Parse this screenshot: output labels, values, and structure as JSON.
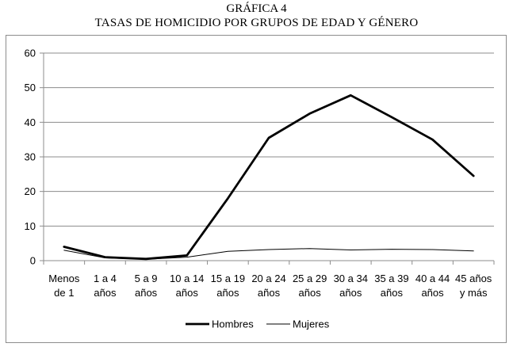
{
  "chart_data": {
    "type": "line",
    "title_line1": "GRÁFICA 4",
    "title_line2": "TASAS DE HOMICIDIO POR GRUPOS DE EDAD Y GÉNERO",
    "categories": [
      [
        "Menos",
        "de 1"
      ],
      [
        "1 a 4",
        "años"
      ],
      [
        "5 a 9",
        "años"
      ],
      [
        "10 a 14",
        "años"
      ],
      [
        "15 a 19",
        "años"
      ],
      [
        "20 a 24",
        "años"
      ],
      [
        "25 a 29",
        "años"
      ],
      [
        "30 a 34",
        "años"
      ],
      [
        "35 a 39",
        "años"
      ],
      [
        "40 a 44",
        "años"
      ],
      [
        "45 años",
        "y más"
      ]
    ],
    "yticks": [
      0,
      10,
      20,
      30,
      40,
      50,
      60
    ],
    "ylim": [
      0,
      60
    ],
    "grid": true,
    "legend_position": "bottom",
    "series": [
      {
        "name": "Hombres",
        "values": [
          4.0,
          1.0,
          0.5,
          1.5,
          18.0,
          35.5,
          42.5,
          47.8,
          41.5,
          35.0,
          24.5
        ],
        "color": "#000000",
        "weight": "bold"
      },
      {
        "name": "Mujeres",
        "values": [
          3.0,
          0.8,
          0.4,
          1.0,
          2.7,
          3.2,
          3.5,
          3.1,
          3.3,
          3.2,
          2.8
        ],
        "color": "#000000",
        "weight": "thin"
      }
    ]
  }
}
